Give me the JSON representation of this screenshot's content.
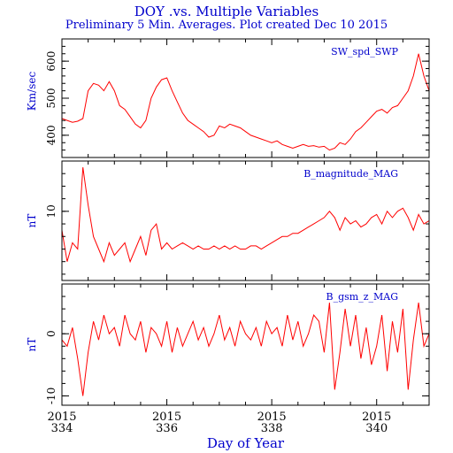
{
  "title": "DOY .vs. Multiple Variables",
  "subtitle": "Preliminary 5 Min. Averages. Plot created Dec 10 2015",
  "colors": {
    "text": "#0000cc",
    "data": "#ff0000",
    "axes": "#000000"
  },
  "chart_data": [
    {
      "type": "line",
      "series_label": "SW_spd_SWP",
      "ylabel": "Km/sec",
      "xlim": [
        334,
        341
      ],
      "ylim": [
        340,
        660
      ],
      "yticks": [
        400,
        500,
        600
      ],
      "x": [
        334.0,
        334.1,
        334.2,
        334.3,
        334.4,
        334.5,
        334.6,
        334.7,
        334.8,
        334.9,
        335.0,
        335.1,
        335.2,
        335.3,
        335.4,
        335.5,
        335.6,
        335.7,
        335.8,
        335.9,
        336.0,
        336.1,
        336.2,
        336.3,
        336.4,
        336.5,
        336.6,
        336.7,
        336.8,
        336.9,
        337.0,
        337.1,
        337.2,
        337.3,
        337.4,
        337.5,
        337.6,
        337.7,
        337.8,
        337.9,
        338.0,
        338.1,
        338.2,
        338.3,
        338.4,
        338.5,
        338.6,
        338.7,
        338.8,
        338.9,
        339.0,
        339.1,
        339.2,
        339.3,
        339.4,
        339.5,
        339.6,
        339.7,
        339.8,
        339.9,
        340.0,
        340.1,
        340.2,
        340.3,
        340.4,
        340.5,
        340.6,
        340.7,
        340.8,
        340.9,
        341.0
      ],
      "values": [
        445,
        440,
        435,
        438,
        445,
        520,
        540,
        535,
        520,
        545,
        520,
        480,
        470,
        450,
        430,
        420,
        440,
        500,
        530,
        550,
        555,
        520,
        490,
        460,
        440,
        430,
        420,
        410,
        395,
        400,
        425,
        420,
        430,
        425,
        420,
        410,
        400,
        395,
        390,
        385,
        380,
        385,
        375,
        370,
        365,
        370,
        375,
        370,
        372,
        368,
        370,
        360,
        365,
        380,
        375,
        390,
        410,
        420,
        435,
        450,
        465,
        470,
        460,
        475,
        480,
        500,
        520,
        560,
        620,
        560,
        520
      ]
    },
    {
      "type": "line",
      "series_label": "B_magnitude_MAG",
      "ylabel": "nT",
      "xlim": [
        334,
        341
      ],
      "ylim": [
        -1,
        18
      ],
      "yticks": [
        10
      ],
      "x": [
        334.0,
        334.1,
        334.2,
        334.3,
        334.4,
        334.5,
        334.6,
        334.7,
        334.8,
        334.9,
        335.0,
        335.1,
        335.2,
        335.3,
        335.4,
        335.5,
        335.6,
        335.7,
        335.8,
        335.9,
        336.0,
        336.1,
        336.2,
        336.3,
        336.4,
        336.5,
        336.6,
        336.7,
        336.8,
        336.9,
        337.0,
        337.1,
        337.2,
        337.3,
        337.4,
        337.5,
        337.6,
        337.7,
        337.8,
        337.9,
        338.0,
        338.1,
        338.2,
        338.3,
        338.4,
        338.5,
        338.6,
        338.7,
        338.8,
        338.9,
        339.0,
        339.1,
        339.2,
        339.3,
        339.4,
        339.5,
        339.6,
        339.7,
        339.8,
        339.9,
        340.0,
        340.1,
        340.2,
        340.3,
        340.4,
        340.5,
        340.6,
        340.7,
        340.8,
        340.9,
        341.0
      ],
      "values": [
        7,
        2,
        5,
        4,
        17,
        11,
        6,
        4,
        2,
        5,
        3,
        4,
        5,
        2,
        4,
        6,
        3,
        7,
        8,
        4,
        5,
        4,
        4.5,
        5,
        4.5,
        4,
        4.5,
        4,
        4,
        4.5,
        4,
        4.5,
        4,
        4.5,
        4,
        4,
        4.5,
        4.5,
        4,
        4.5,
        5,
        5.5,
        6,
        6,
        6.5,
        6.5,
        7,
        7.5,
        8,
        8.5,
        9,
        10,
        9,
        7,
        9,
        8,
        8.5,
        7.5,
        8,
        9,
        9.5,
        8,
        10,
        9,
        10,
        10.5,
        9,
        7,
        9.5,
        8,
        8.5
      ]
    },
    {
      "type": "line",
      "series_label": "B_gsm_z_MAG",
      "ylabel": "nT",
      "xlim": [
        334,
        341
      ],
      "ylim": [
        -11.5,
        8
      ],
      "yticks": [
        -10,
        0
      ],
      "x": [
        334.0,
        334.1,
        334.2,
        334.3,
        334.4,
        334.5,
        334.6,
        334.7,
        334.8,
        334.9,
        335.0,
        335.1,
        335.2,
        335.3,
        335.4,
        335.5,
        335.6,
        335.7,
        335.8,
        335.9,
        336.0,
        336.1,
        336.2,
        336.3,
        336.4,
        336.5,
        336.6,
        336.7,
        336.8,
        336.9,
        337.0,
        337.1,
        337.2,
        337.3,
        337.4,
        337.5,
        337.6,
        337.7,
        337.8,
        337.9,
        338.0,
        338.1,
        338.2,
        338.3,
        338.4,
        338.5,
        338.6,
        338.7,
        338.8,
        338.9,
        339.0,
        339.1,
        339.2,
        339.3,
        339.4,
        339.5,
        339.6,
        339.7,
        339.8,
        339.9,
        340.0,
        340.1,
        340.2,
        340.3,
        340.4,
        340.5,
        340.6,
        340.7,
        340.8,
        340.9,
        341.0
      ],
      "values": [
        -1,
        -2,
        1,
        -4,
        -10,
        -3,
        2,
        -1,
        3,
        0,
        1,
        -2,
        3,
        0,
        -1,
        2,
        -3,
        1,
        0,
        -2,
        2,
        -3,
        1,
        -2,
        0,
        2,
        -1,
        1,
        -2,
        0,
        3,
        -1,
        1,
        -2,
        2,
        0,
        -1,
        1,
        -2,
        2,
        0,
        1,
        -2,
        3,
        -1,
        2,
        -2,
        0,
        3,
        2,
        -3,
        5,
        -9,
        -3,
        4,
        -2,
        3,
        -4,
        1,
        -5,
        -2,
        3,
        -6,
        2,
        -3,
        4,
        -9,
        -1,
        5,
        -2,
        0
      ]
    }
  ],
  "x_axis": {
    "label": "Day of Year",
    "ticks": [
      {
        "value": 334,
        "year": "2015",
        "day": "334"
      },
      {
        "value": 336,
        "year": "2015",
        "day": "336"
      },
      {
        "value": 338,
        "year": "2015",
        "day": "338"
      },
      {
        "value": 340,
        "year": "2015",
        "day": "340"
      }
    ]
  }
}
